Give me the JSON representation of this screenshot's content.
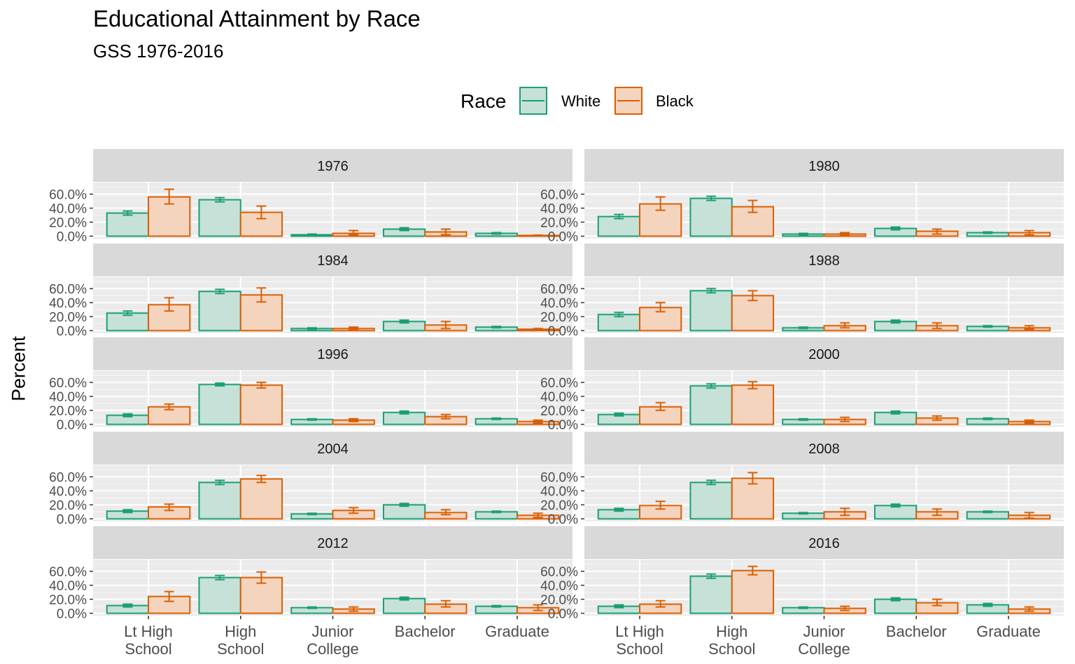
{
  "title": "Educational Attainment by Race",
  "subtitle": "GSS 1976-2016",
  "legend": {
    "title": "Race",
    "items": [
      {
        "label": "White",
        "color": "#1b9e77",
        "fill": "#c6e2d8"
      },
      {
        "label": "Black",
        "color": "#d95f02",
        "fill": "#f5d4be"
      }
    ]
  },
  "y_axis_label": "Percent",
  "chart_data": {
    "type": "bar",
    "categories": [
      "Lt High\nSchool",
      "High\nSchool",
      "Junior\nCollege",
      "Bachelor",
      "Graduate"
    ],
    "y_ticks": [
      "0.0%",
      "20.0%",
      "40.0%",
      "60.0%"
    ],
    "ylim": [
      0,
      70
    ],
    "panels": [
      {
        "year": "1976",
        "white": [
          [
            33,
            30,
            36
          ],
          [
            52,
            49,
            55
          ],
          [
            2,
            1.5,
            3
          ],
          [
            10,
            8,
            12
          ],
          [
            4,
            3,
            5
          ]
        ],
        "black": [
          [
            56,
            46,
            67
          ],
          [
            34,
            25,
            43
          ],
          [
            4,
            2,
            8
          ],
          [
            6,
            2,
            10
          ],
          [
            1,
            0,
            1.5
          ]
        ]
      },
      {
        "year": "1980",
        "white": [
          [
            28,
            25,
            31
          ],
          [
            54,
            51,
            57
          ],
          [
            3,
            2,
            4
          ],
          [
            11,
            9,
            13
          ],
          [
            5,
            4,
            6
          ]
        ],
        "black": [
          [
            46,
            37,
            56
          ],
          [
            42,
            34,
            51
          ],
          [
            3,
            1,
            5
          ],
          [
            7,
            3,
            10
          ],
          [
            5,
            2,
            8
          ]
        ]
      },
      {
        "year": "1984",
        "white": [
          [
            25,
            22,
            28
          ],
          [
            56,
            53,
            59
          ],
          [
            3,
            2,
            4
          ],
          [
            13,
            11,
            15
          ],
          [
            5,
            4,
            6
          ]
        ],
        "black": [
          [
            37,
            28,
            47
          ],
          [
            51,
            41,
            61
          ],
          [
            3,
            1,
            5
          ],
          [
            8,
            3,
            13
          ],
          [
            2,
            1,
            3
          ]
        ]
      },
      {
        "year": "1988",
        "white": [
          [
            23,
            20,
            26
          ],
          [
            57,
            54,
            60
          ],
          [
            4,
            3,
            5
          ],
          [
            13,
            11,
            15
          ],
          [
            6,
            5,
            7
          ]
        ],
        "black": [
          [
            33,
            27,
            40
          ],
          [
            50,
            43,
            57
          ],
          [
            7,
            4,
            11
          ],
          [
            7,
            3,
            11
          ],
          [
            4,
            2,
            7
          ]
        ]
      },
      {
        "year": "1996",
        "white": [
          [
            13,
            11,
            15
          ],
          [
            57,
            55,
            59
          ],
          [
            7,
            6,
            8
          ],
          [
            17,
            15,
            19
          ],
          [
            8,
            7,
            9
          ]
        ],
        "black": [
          [
            25,
            21,
            29
          ],
          [
            56,
            52,
            60
          ],
          [
            6,
            4,
            8
          ],
          [
            11,
            8,
            14
          ],
          [
            4,
            2,
            6
          ]
        ]
      },
      {
        "year": "2000",
        "white": [
          [
            14,
            12,
            16
          ],
          [
            55,
            52,
            58
          ],
          [
            7,
            6,
            8
          ],
          [
            17,
            15,
            19
          ],
          [
            8,
            7,
            9
          ]
        ],
        "black": [
          [
            25,
            20,
            31
          ],
          [
            56,
            51,
            61
          ],
          [
            7,
            4,
            10
          ],
          [
            9,
            6,
            12
          ],
          [
            4,
            2,
            6
          ]
        ]
      },
      {
        "year": "2004",
        "white": [
          [
            11,
            9,
            13
          ],
          [
            52,
            49,
            55
          ],
          [
            7,
            6,
            8
          ],
          [
            20,
            18,
            22
          ],
          [
            10,
            9,
            11
          ]
        ],
        "black": [
          [
            17,
            12,
            21
          ],
          [
            57,
            52,
            62
          ],
          [
            12,
            8,
            16
          ],
          [
            9,
            6,
            13
          ],
          [
            5,
            2,
            8
          ]
        ]
      },
      {
        "year": "2008",
        "white": [
          [
            13,
            11,
            15
          ],
          [
            52,
            49,
            55
          ],
          [
            8,
            7,
            9
          ],
          [
            19,
            17,
            21
          ],
          [
            10,
            9,
            11
          ]
        ],
        "black": [
          [
            19,
            14,
            25
          ],
          [
            58,
            50,
            66
          ],
          [
            10,
            5,
            15
          ],
          [
            10,
            5,
            14
          ],
          [
            5,
            1,
            9
          ]
        ]
      },
      {
        "year": "2012",
        "white": [
          [
            11,
            9,
            13
          ],
          [
            51,
            48,
            54
          ],
          [
            8,
            7,
            9
          ],
          [
            21,
            19,
            23
          ],
          [
            10,
            9,
            11
          ]
        ],
        "black": [
          [
            24,
            17,
            31
          ],
          [
            51,
            43,
            59
          ],
          [
            6,
            3,
            9
          ],
          [
            13,
            9,
            18
          ],
          [
            8,
            4,
            12
          ]
        ]
      },
      {
        "year": "2016",
        "white": [
          [
            10,
            8,
            12
          ],
          [
            53,
            50,
            56
          ],
          [
            8,
            7,
            9
          ],
          [
            20,
            18,
            22
          ],
          [
            12,
            10,
            14
          ]
        ],
        "black": [
          [
            13,
            9,
            18
          ],
          [
            61,
            55,
            67
          ],
          [
            7,
            4,
            10
          ],
          [
            15,
            11,
            20
          ],
          [
            6,
            3,
            9
          ]
        ]
      }
    ]
  }
}
